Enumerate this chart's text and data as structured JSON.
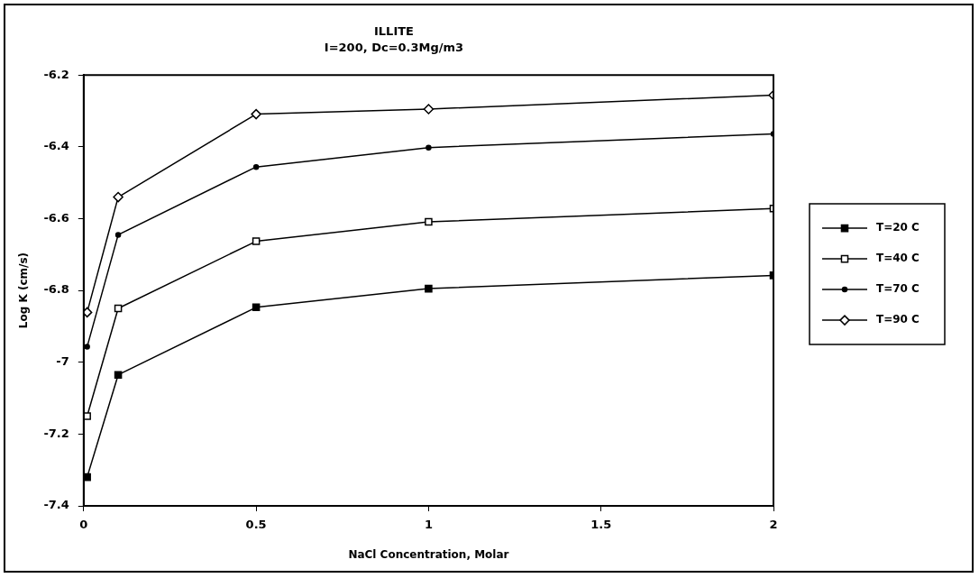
{
  "chart_data": {
    "type": "line",
    "title": "ILLITE",
    "subtitle": "I=200, Dc=0.3Mg/m3",
    "xlabel": "NaCl Concentration, Molar",
    "ylabel": "Log K (cm/s)",
    "x": [
      0.01,
      0.1,
      0.5,
      1,
      2
    ],
    "series": [
      {
        "name": "T=20 C",
        "color": "#000000",
        "marker": "square",
        "values": [
          -7.32,
          -7.035,
          -6.847,
          -6.795,
          -6.758
        ]
      },
      {
        "name": "T=40 C",
        "color": "#000000",
        "marker": "square",
        "values": [
          -7.15,
          -6.85,
          -6.663,
          -6.609,
          -6.572
        ]
      },
      {
        "name": "T=70 C",
        "color": "#000000",
        "marker": "circle",
        "values": [
          -6.957,
          -6.645,
          -6.456,
          -6.402,
          -6.364
        ]
      },
      {
        "name": "T=90 C",
        "color": "#000000",
        "marker": "diamond",
        "values": [
          -6.861,
          -6.54,
          -6.309,
          -6.295,
          -6.256
        ]
      }
    ],
    "xlim": [
      0,
      2
    ],
    "xticks": [
      0,
      0.5,
      1,
      1.5,
      2
    ],
    "ylim": [
      -7.4,
      -6.2
    ],
    "yticks": [
      -7.4,
      -7.2,
      -7,
      -6.8,
      -6.6,
      -6.4,
      -6.2
    ],
    "grid": false,
    "legend": "right",
    "line_style": "solid"
  }
}
